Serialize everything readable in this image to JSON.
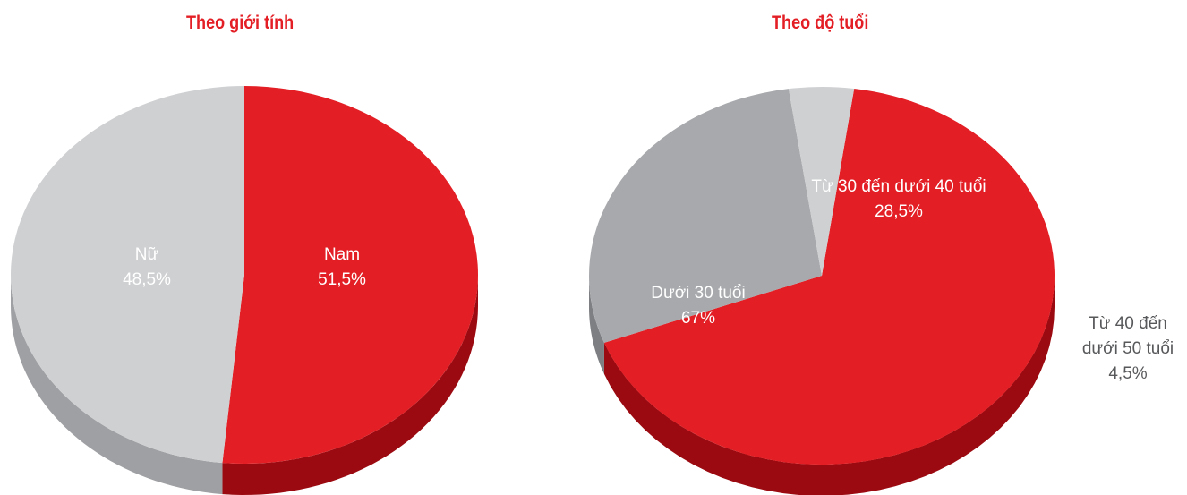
{
  "colors": {
    "title": "#e31e24",
    "red": "#e31e24",
    "red_side": "#9b0a10",
    "gray_light": "#cfd0d2",
    "gray_light_side": "#9fa0a3",
    "gray_dark": "#a7a9ac",
    "gray_dark_side": "#7d7f82",
    "label_light": "#ffffff"
  },
  "chart_data": [
    {
      "type": "pie",
      "title": "Theo giới tính",
      "slices": [
        {
          "name": "Nam",
          "value": 51.5,
          "value_label": "51,5%",
          "color": "#e31e24",
          "label_color": "#ffffff"
        },
        {
          "name": "Nữ",
          "value": 48.5,
          "value_label": "48,5%",
          "color": "#cfd0d2",
          "label_color": "#ffffff"
        }
      ]
    },
    {
      "type": "pie",
      "title": "Theo độ tuổi",
      "slices": [
        {
          "name": "Dưới 30 tuổi",
          "value": 67,
          "value_label": "67%",
          "color": "#e31e24",
          "label_color": "#ffffff"
        },
        {
          "name": "Từ 30 đến dưới 40 tuổi",
          "value": 28.5,
          "value_label": "28,5%",
          "color": "#a7a9ac",
          "label_color": "#ffffff"
        },
        {
          "name": "Từ 40 đến dưới 50 tuổi",
          "name_lines": [
            "Từ 40 đến",
            "dưới 50 tuổi"
          ],
          "value": 4.5,
          "value_label": "4,5%",
          "color": "#cfd0d2",
          "label_color": "#58595b"
        }
      ]
    }
  ]
}
